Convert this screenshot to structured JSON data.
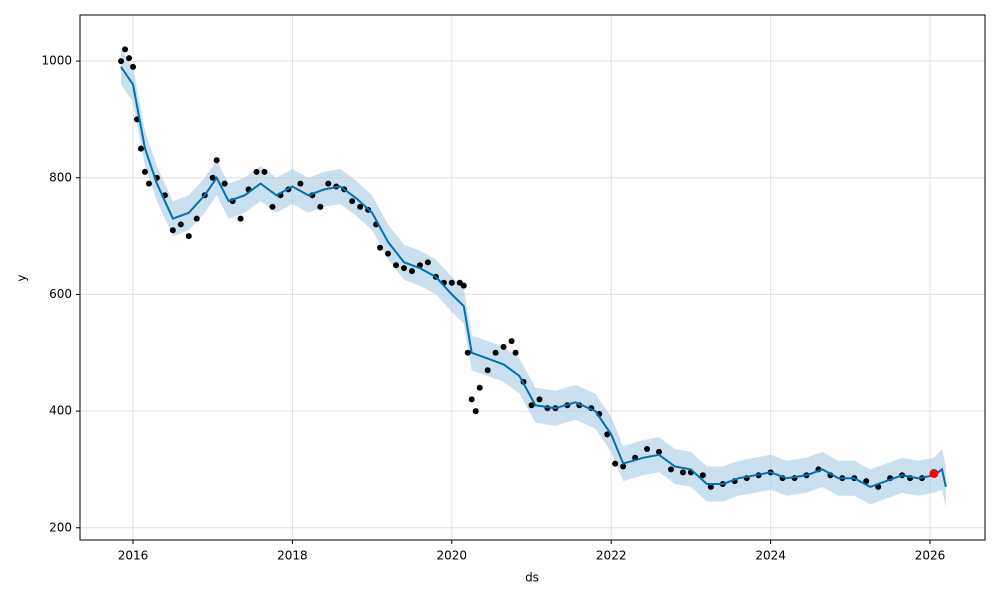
{
  "chart_data": {
    "type": "forecast",
    "x_label": "ds",
    "y_label": "y",
    "xlim": [
      2015.335,
      2026.69
    ],
    "ylim": [
      179,
      1079
    ],
    "xticks": [
      2016,
      2018,
      2020,
      2022,
      2024,
      2026
    ],
    "yticks": [
      200,
      400,
      600,
      800,
      1000
    ],
    "grid": true,
    "observations": {
      "color": "#000000",
      "x": [
        2015.85,
        2015.9,
        2015.95,
        2016.0,
        2016.05,
        2016.1,
        2016.15,
        2016.2,
        2016.3,
        2016.4,
        2016.5,
        2016.6,
        2016.7,
        2016.8,
        2016.9,
        2017.0,
        2017.05,
        2017.15,
        2017.25,
        2017.35,
        2017.45,
        2017.55,
        2017.65,
        2017.75,
        2017.85,
        2017.95,
        2018.1,
        2018.25,
        2018.35,
        2018.45,
        2018.55,
        2018.65,
        2018.75,
        2018.85,
        2018.95,
        2019.05,
        2019.1,
        2019.2,
        2019.3,
        2019.4,
        2019.5,
        2019.6,
        2019.7,
        2019.8,
        2019.9,
        2020.0,
        2020.1,
        2020.15,
        2020.2,
        2020.25,
        2020.3,
        2020.35,
        2020.45,
        2020.55,
        2020.65,
        2020.75,
        2020.8,
        2020.9,
        2021.0,
        2021.1,
        2021.2,
        2021.3,
        2021.45,
        2021.6,
        2021.75,
        2021.85,
        2021.95,
        2022.05,
        2022.15,
        2022.3,
        2022.45,
        2022.6,
        2022.75,
        2022.9,
        2023.0,
        2023.15,
        2023.25,
        2023.4,
        2023.55,
        2023.7,
        2023.85,
        2024.0,
        2024.15,
        2024.3,
        2024.45,
        2024.6,
        2024.75,
        2024.9,
        2025.05,
        2025.2,
        2025.35,
        2025.5,
        2025.65,
        2025.75,
        2025.9
      ],
      "values": [
        1000,
        1020,
        1005,
        990,
        900,
        850,
        810,
        790,
        800,
        770,
        710,
        720,
        700,
        730,
        770,
        800,
        830,
        790,
        760,
        730,
        780,
        810,
        810,
        750,
        770,
        780,
        790,
        770,
        750,
        790,
        785,
        780,
        760,
        750,
        745,
        720,
        680,
        670,
        650,
        645,
        640,
        650,
        655,
        630,
        620,
        620,
        620,
        615,
        500,
        420,
        400,
        440,
        470,
        500,
        510,
        520,
        500,
        450,
        410,
        420,
        405,
        405,
        410,
        410,
        405,
        395,
        360,
        310,
        305,
        320,
        335,
        330,
        300,
        295,
        295,
        290,
        270,
        275,
        280,
        285,
        290,
        295,
        285,
        285,
        290,
        300,
        290,
        285,
        285,
        280,
        270,
        285,
        290,
        285,
        285
      ]
    },
    "forecast": {
      "color": "#0072b2",
      "band_color": "#a6cbe3",
      "x": [
        2015.85,
        2016.0,
        2016.15,
        2016.3,
        2016.5,
        2016.7,
        2016.9,
        2017.05,
        2017.2,
        2017.4,
        2017.6,
        2017.8,
        2018.0,
        2018.2,
        2018.4,
        2018.6,
        2018.8,
        2019.0,
        2019.2,
        2019.4,
        2019.6,
        2019.8,
        2020.0,
        2020.15,
        2020.25,
        2020.45,
        2020.65,
        2020.85,
        2021.05,
        2021.3,
        2021.55,
        2021.8,
        2022.0,
        2022.15,
        2022.4,
        2022.6,
        2022.8,
        2023.0,
        2023.2,
        2023.4,
        2023.6,
        2023.8,
        2024.0,
        2024.2,
        2024.45,
        2024.65,
        2024.85,
        2025.05,
        2025.25,
        2025.45,
        2025.65,
        2025.85,
        2026.05,
        2026.15,
        2026.2
      ],
      "values": [
        990,
        960,
        850,
        790,
        730,
        740,
        770,
        800,
        760,
        770,
        790,
        770,
        785,
        770,
        780,
        785,
        765,
        740,
        690,
        655,
        645,
        630,
        600,
        580,
        500,
        490,
        480,
        460,
        410,
        405,
        415,
        400,
        360,
        310,
        320,
        325,
        305,
        300,
        275,
        275,
        285,
        290,
        295,
        285,
        290,
        300,
        285,
        285,
        270,
        280,
        290,
        285,
        290,
        300,
        270
      ],
      "lower": [
        960,
        930,
        820,
        760,
        700,
        710,
        740,
        770,
        730,
        740,
        760,
        740,
        755,
        740,
        750,
        755,
        735,
        710,
        660,
        625,
        615,
        600,
        570,
        550,
        470,
        460,
        450,
        430,
        380,
        375,
        385,
        370,
        330,
        280,
        290,
        295,
        275,
        270,
        245,
        245,
        255,
        260,
        265,
        255,
        260,
        270,
        255,
        255,
        240,
        250,
        260,
        255,
        260,
        265,
        235
      ],
      "upper": [
        1020,
        990,
        880,
        820,
        760,
        770,
        800,
        830,
        790,
        800,
        820,
        800,
        815,
        800,
        810,
        815,
        795,
        770,
        720,
        685,
        675,
        660,
        630,
        610,
        530,
        520,
        510,
        490,
        440,
        435,
        445,
        430,
        390,
        340,
        350,
        355,
        335,
        330,
        305,
        305,
        315,
        320,
        325,
        315,
        320,
        330,
        315,
        315,
        300,
        310,
        320,
        315,
        320,
        335,
        305
      ]
    },
    "highlight": {
      "color": "#ff0000",
      "x": [
        2026.05
      ],
      "values": [
        293
      ]
    }
  }
}
